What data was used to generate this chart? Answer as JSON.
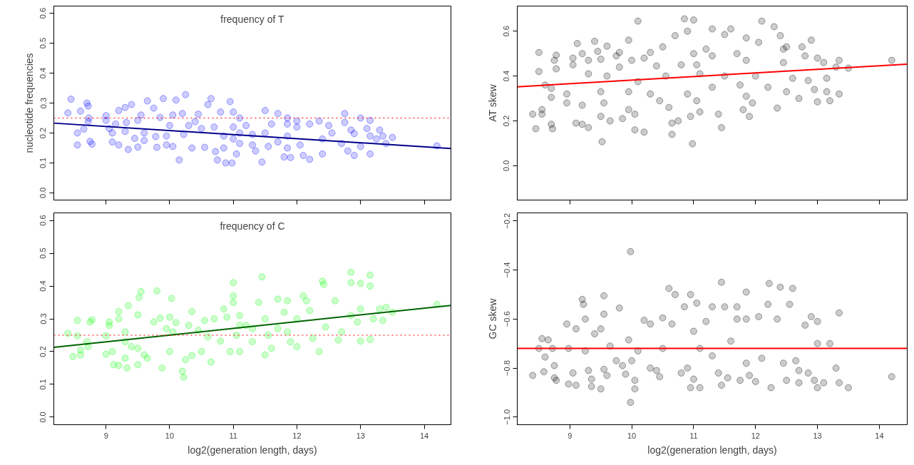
{
  "chart_data": [
    {
      "type": "scatter",
      "title": "frequency of T",
      "ylabel": "nucleotide frequencies",
      "xlim": [
        8.18,
        14.42
      ],
      "ylim": [
        -0.024,
        0.624
      ],
      "xticks": [
        9,
        10,
        11,
        12,
        13,
        14
      ],
      "yticks": [
        {
          "value": 0,
          "label": "0.0"
        },
        0.1,
        0.2,
        0.3,
        0.4,
        0.5,
        0.6
      ],
      "tick_labels": "y",
      "grid": false,
      "ref_lines": [
        {
          "axis": "y",
          "value": 0.25,
          "color": "#ff0000",
          "line_style": "dotted"
        }
      ],
      "series": [
        {
          "marker": "circle",
          "color": "#0000ff",
          "x": [
            8.4,
            8.45,
            8.55,
            8.55,
            8.6,
            8.65,
            8.7,
            8.72,
            8.73,
            8.72,
            8.75,
            8.78,
            9.0,
            9.0,
            9.05,
            9.1,
            9.1,
            9.15,
            9.2,
            9.2,
            9.3,
            9.3,
            9.32,
            9.35,
            9.4,
            9.45,
            9.5,
            9.5,
            9.55,
            9.6,
            9.6,
            9.65,
            9.75,
            9.78,
            9.8,
            9.85,
            9.9,
            9.95,
            9.95,
            10.0,
            10.05,
            10.05,
            10.1,
            10.15,
            10.2,
            10.22,
            10.25,
            10.3,
            10.35,
            10.4,
            10.45,
            10.5,
            10.55,
            10.6,
            10.65,
            10.7,
            10.72,
            10.75,
            10.8,
            10.85,
            10.85,
            10.88,
            10.95,
            10.98,
            11.0,
            11.0,
            11.0,
            11.05,
            11.1,
            11.1,
            11.1,
            11.2,
            11.3,
            11.3,
            11.35,
            11.45,
            11.5,
            11.5,
            11.55,
            11.6,
            11.7,
            11.7,
            11.8,
            11.85,
            11.85,
            11.85,
            11.85,
            11.9,
            12.0,
            12.0,
            12.05,
            12.1,
            12.2,
            12.2,
            12.35,
            12.4,
            12.4,
            12.5,
            12.55,
            12.7,
            12.75,
            12.75,
            12.8,
            12.85,
            12.9,
            12.9,
            13.0,
            13.0,
            13.1,
            13.15,
            13.15,
            13.15,
            13.25,
            13.3,
            13.35,
            13.4,
            13.5,
            14.2
          ],
          "values": [
            0.267,
            0.313,
            0.2,
            0.16,
            0.273,
            0.213,
            0.3,
            0.29,
            0.25,
            0.238,
            0.172,
            0.163,
            0.258,
            0.242,
            0.215,
            0.2,
            0.17,
            0.23,
            0.275,
            0.16,
            0.285,
            0.205,
            0.235,
            0.145,
            0.295,
            0.182,
            0.242,
            0.153,
            0.26,
            0.2,
            0.175,
            0.307,
            0.283,
            0.188,
            0.152,
            0.252,
            0.315,
            0.16,
            0.19,
            0.225,
            0.26,
            0.155,
            0.31,
            0.11,
            0.265,
            0.195,
            0.328,
            0.225,
            0.15,
            0.238,
            0.263,
            0.215,
            0.152,
            0.295,
            0.315,
            0.22,
            0.138,
            0.11,
            0.27,
            0.19,
            0.15,
            0.1,
            0.305,
            0.1,
            0.27,
            0.22,
            0.18,
            0.13,
            0.25,
            0.2,
            0.165,
            0.225,
            0.195,
            0.16,
            0.14,
            0.103,
            0.275,
            0.2,
            0.155,
            0.23,
            0.265,
            0.17,
            0.12,
            0.25,
            0.23,
            0.19,
            0.15,
            0.118,
            0.24,
            0.22,
            0.16,
            0.125,
            0.23,
            0.112,
            0.24,
            0.18,
            0.13,
            0.225,
            0.2,
            0.165,
            0.265,
            0.235,
            0.14,
            0.21,
            0.198,
            0.125,
            0.25,
            0.155,
            0.215,
            0.19,
            0.13,
            0.242,
            0.18,
            0.21,
            0.19,
            0.165,
            0.185,
            0.157
          ]
        },
        {
          "type": "line",
          "color": "#00008b",
          "x": [
            8.18,
            14.42
          ],
          "values": [
            0.233,
            0.148
          ]
        }
      ]
    },
    {
      "type": "scatter",
      "ylabel": "AT skew",
      "xlim": [
        8.15,
        14.45
      ],
      "ylim": [
        -0.153,
        0.712
      ],
      "xticks": [
        9,
        10,
        11,
        12,
        13,
        14
      ],
      "yticks": [
        {
          "value": 0,
          "label": "0.0"
        },
        0.2,
        0.4,
        0.6
      ],
      "tick_labels": "y",
      "grid": false,
      "series": [
        {
          "marker": "circle",
          "color": "#000000",
          "x": [
            8.4,
            8.45,
            8.5,
            8.5,
            8.55,
            8.55,
            8.6,
            8.7,
            8.7,
            8.7,
            8.72,
            8.75,
            8.78,
            8.78,
            8.95,
            8.95,
            9.05,
            9.05,
            9.1,
            9.12,
            9.2,
            9.2,
            9.2,
            9.3,
            9.3,
            9.3,
            9.4,
            9.45,
            9.5,
            9.5,
            9.5,
            9.52,
            9.55,
            9.6,
            9.6,
            9.65,
            9.75,
            9.8,
            9.8,
            9.85,
            9.95,
            9.95,
            9.95,
            10.0,
            10.05,
            10.05,
            10.1,
            10.1,
            10.2,
            10.2,
            10.3,
            10.3,
            10.4,
            10.45,
            10.5,
            10.55,
            10.6,
            10.65,
            10.65,
            10.7,
            10.75,
            10.8,
            10.85,
            10.9,
            10.9,
            10.95,
            10.98,
            11.0,
            11.0,
            11.05,
            11.05,
            11.1,
            11.1,
            11.2,
            11.3,
            11.3,
            11.3,
            11.4,
            11.45,
            11.5,
            11.5,
            11.6,
            11.7,
            11.75,
            11.8,
            11.85,
            11.85,
            11.85,
            11.9,
            11.95,
            12.0,
            12.05,
            12.1,
            12.2,
            12.3,
            12.35,
            12.4,
            12.45,
            12.45,
            12.5,
            12.5,
            12.6,
            12.7,
            12.75,
            12.8,
            12.85,
            12.9,
            12.95,
            13.0,
            13.0,
            13.1,
            13.15,
            13.15,
            13.2,
            13.3,
            13.35,
            13.35,
            13.5,
            14.2
          ],
          "values": [
            0.23,
            0.165,
            0.505,
            0.42,
            0.25,
            0.23,
            0.36,
            0.345,
            0.305,
            0.185,
            0.165,
            0.47,
            0.493,
            0.432,
            0.32,
            0.28,
            0.48,
            0.45,
            0.19,
            0.545,
            0.5,
            0.27,
            0.185,
            0.47,
            0.41,
            0.17,
            0.555,
            0.51,
            0.475,
            0.33,
            0.22,
            0.107,
            0.28,
            0.533,
            0.4,
            0.2,
            0.49,
            0.505,
            0.44,
            0.21,
            0.56,
            0.33,
            0.25,
            0.47,
            0.23,
            0.16,
            0.645,
            0.375,
            0.15,
            0.48,
            0.505,
            0.32,
            0.445,
            0.29,
            0.53,
            0.4,
            0.26,
            0.19,
            0.14,
            0.58,
            0.2,
            0.45,
            0.655,
            0.6,
            0.32,
            0.22,
            0.098,
            0.65,
            0.5,
            0.45,
            0.29,
            0.41,
            0.24,
            0.52,
            0.61,
            0.49,
            0.35,
            0.23,
            0.17,
            0.585,
            0.4,
            0.61,
            0.5,
            0.36,
            0.25,
            0.57,
            0.47,
            0.31,
            0.22,
            0.28,
            0.4,
            0.55,
            0.645,
            0.35,
            0.62,
            0.257,
            0.58,
            0.52,
            0.46,
            0.33,
            0.53,
            0.39,
            0.3,
            0.53,
            0.49,
            0.38,
            0.56,
            0.34,
            0.48,
            0.285,
            0.46,
            0.33,
            0.39,
            0.29,
            0.44,
            0.47,
            0.32,
            0.435,
            0.47
          ]
        },
        {
          "type": "line",
          "color": "#ff0000",
          "x": [
            8.15,
            14.45
          ],
          "values": [
            0.352,
            0.453
          ]
        }
      ]
    },
    {
      "type": "scatter",
      "title": "frequency of C",
      "xlabel": "log2(generation length, days)",
      "xlim": [
        8.18,
        14.42
      ],
      "ylim": [
        -0.023,
        0.623
      ],
      "xticks": [
        9,
        10,
        11,
        12,
        13,
        14
      ],
      "yticks": [
        {
          "value": 0,
          "label": "0.0"
        },
        0.1,
        0.2,
        0.3,
        0.4,
        0.5,
        0.6
      ],
      "grid": false,
      "ref_lines": [
        {
          "axis": "y",
          "value": 0.25,
          "color": "#ff0000",
          "line_style": "dotted"
        }
      ],
      "series": [
        {
          "marker": "circle",
          "color": "#00ff00",
          "x": [
            8.4,
            8.48,
            8.55,
            8.55,
            8.6,
            8.6,
            8.7,
            8.72,
            8.75,
            8.78,
            9.0,
            9.0,
            9.05,
            9.05,
            9.1,
            9.12,
            9.2,
            9.2,
            9.2,
            9.3,
            9.3,
            9.3,
            9.33,
            9.35,
            9.4,
            9.5,
            9.5,
            9.5,
            9.52,
            9.55,
            9.6,
            9.65,
            9.75,
            9.8,
            9.85,
            9.88,
            9.95,
            10.0,
            10.0,
            10.03,
            10.05,
            10.1,
            10.2,
            10.22,
            10.25,
            10.3,
            10.35,
            10.35,
            10.45,
            10.5,
            10.55,
            10.6,
            10.65,
            10.7,
            10.8,
            10.85,
            10.9,
            10.95,
            11.0,
            11.0,
            11.0,
            11.05,
            11.1,
            11.1,
            11.1,
            11.2,
            11.3,
            11.3,
            11.4,
            11.45,
            11.5,
            11.5,
            11.55,
            11.6,
            11.7,
            11.7,
            11.8,
            11.85,
            11.85,
            11.9,
            12.0,
            12.0,
            12.1,
            12.15,
            12.2,
            12.25,
            12.35,
            12.4,
            12.42,
            12.45,
            12.6,
            12.65,
            12.7,
            12.85,
            12.85,
            12.85,
            12.95,
            13.0,
            13.0,
            13.0,
            13.15,
            13.15,
            13.15,
            13.2,
            13.3,
            13.35,
            13.4,
            13.5,
            14.2
          ],
          "values": [
            0.256,
            0.185,
            0.295,
            0.248,
            0.205,
            0.19,
            0.23,
            0.215,
            0.29,
            0.297,
            0.248,
            0.192,
            0.29,
            0.28,
            0.2,
            0.16,
            0.322,
            0.3,
            0.158,
            0.26,
            0.23,
            0.18,
            0.15,
            0.34,
            0.215,
            0.312,
            0.21,
            0.16,
            0.365,
            0.383,
            0.19,
            0.18,
            0.29,
            0.385,
            0.302,
            0.15,
            0.27,
            0.305,
            0.2,
            0.362,
            0.26,
            0.288,
            0.14,
            0.122,
            0.175,
            0.28,
            0.188,
            0.322,
            0.265,
            0.2,
            0.295,
            0.245,
            0.168,
            0.3,
            0.232,
            0.33,
            0.305,
            0.2,
            0.41,
            0.37,
            0.35,
            0.25,
            0.31,
            0.28,
            0.2,
            0.28,
            0.27,
            0.23,
            0.35,
            0.428,
            0.3,
            0.19,
            0.25,
            0.21,
            0.36,
            0.27,
            0.32,
            0.355,
            0.26,
            0.23,
            0.3,
            0.215,
            0.37,
            0.355,
            0.325,
            0.24,
            0.2,
            0.415,
            0.405,
            0.275,
            0.355,
            0.235,
            0.26,
            0.442,
            0.41,
            0.31,
            0.29,
            0.408,
            0.33,
            0.232,
            0.433,
            0.4,
            0.237,
            0.3,
            0.33,
            0.295,
            0.335,
            0.32,
            0.344
          ]
        },
        {
          "type": "line",
          "color": "#006400",
          "x": [
            8.18,
            14.42
          ],
          "values": [
            0.213,
            0.341
          ]
        }
      ]
    },
    {
      "type": "scatter",
      "xlabel": "log2(generation length, days)",
      "ylabel": "GC skew",
      "xlim": [
        8.15,
        14.45
      ],
      "ylim": [
        -1.031,
        -0.167
      ],
      "xticks": [
        9,
        10,
        11,
        12,
        13,
        14
      ],
      "yticks": [
        {
          "value": -1.0,
          "label": "−1.0"
        },
        {
          "value": -0.8,
          "label": "−0.8"
        },
        {
          "value": -0.6,
          "label": "−0.6"
        },
        {
          "value": -0.4,
          "label": "−0.4"
        },
        {
          "value": -0.2,
          "label": "−0.2"
        }
      ],
      "grid": false,
      "series": [
        {
          "marker": "circle",
          "color": "#000000",
          "x": [
            8.4,
            8.5,
            8.55,
            8.58,
            8.6,
            8.65,
            8.72,
            8.75,
            8.75,
            8.78,
            8.95,
            8.98,
            8.98,
            9.05,
            9.1,
            9.1,
            9.2,
            9.22,
            9.25,
            9.25,
            9.3,
            9.35,
            9.35,
            9.4,
            9.5,
            9.5,
            9.55,
            9.55,
            9.55,
            9.6,
            9.65,
            9.75,
            9.8,
            9.85,
            9.9,
            9.95,
            9.98,
            9.98,
            10.0,
            10.05,
            10.05,
            10.1,
            10.2,
            10.3,
            10.3,
            10.4,
            10.45,
            10.5,
            10.5,
            10.6,
            10.65,
            10.7,
            10.8,
            10.85,
            10.9,
            10.95,
            10.95,
            11.0,
            11.0,
            11.05,
            11.1,
            11.1,
            11.2,
            11.3,
            11.3,
            11.4,
            11.45,
            11.45,
            11.5,
            11.55,
            11.6,
            11.7,
            11.7,
            11.75,
            11.85,
            11.85,
            11.85,
            11.9,
            12.0,
            12.05,
            12.1,
            12.2,
            12.22,
            12.25,
            12.35,
            12.4,
            12.45,
            12.5,
            12.55,
            12.6,
            12.65,
            12.7,
            12.7,
            12.8,
            12.85,
            12.9,
            12.95,
            13.0,
            13.0,
            13.0,
            13.1,
            13.2,
            13.3,
            13.35,
            13.35,
            13.5,
            14.2
          ],
          "values": [
            -0.83,
            -0.72,
            -0.68,
            -0.815,
            -0.755,
            -0.685,
            -0.72,
            -0.79,
            -0.84,
            -0.85,
            -0.62,
            -0.72,
            -0.865,
            -0.82,
            -0.64,
            -0.87,
            -0.52,
            -0.54,
            -0.73,
            -0.6,
            -0.81,
            -0.845,
            -0.875,
            -0.66,
            -0.64,
            -0.885,
            -0.505,
            -0.58,
            -0.805,
            -0.83,
            -0.71,
            -0.77,
            -0.555,
            -0.79,
            -0.825,
            -0.685,
            -0.325,
            -0.94,
            -0.77,
            -0.885,
            -0.85,
            -0.73,
            -0.605,
            -0.62,
            -0.8,
            -0.81,
            -0.835,
            -0.595,
            -0.72,
            -0.475,
            -0.62,
            -0.5,
            -0.82,
            -0.55,
            -0.8,
            -0.5,
            -0.88,
            -0.65,
            -0.845,
            -0.535,
            -0.72,
            -0.88,
            -0.61,
            -0.55,
            -0.75,
            -0.82,
            -0.45,
            -0.87,
            -0.55,
            -0.84,
            -0.69,
            -0.55,
            -0.6,
            -0.85,
            -0.49,
            -0.6,
            -0.78,
            -0.83,
            -0.855,
            -0.59,
            -0.76,
            -0.54,
            -0.455,
            -0.88,
            -0.6,
            -0.47,
            -0.78,
            -0.85,
            -0.54,
            -0.475,
            -0.77,
            -0.81,
            -0.86,
            -0.625,
            -0.82,
            -0.59,
            -0.85,
            -0.61,
            -0.7,
            -0.88,
            -0.86,
            -0.7,
            -0.8,
            -0.86,
            -0.575,
            -0.88,
            -0.835
          ]
        },
        {
          "type": "line",
          "color": "#ff0000",
          "x": [
            8.15,
            14.45
          ],
          "values": [
            -0.72,
            -0.72
          ]
        }
      ]
    }
  ]
}
